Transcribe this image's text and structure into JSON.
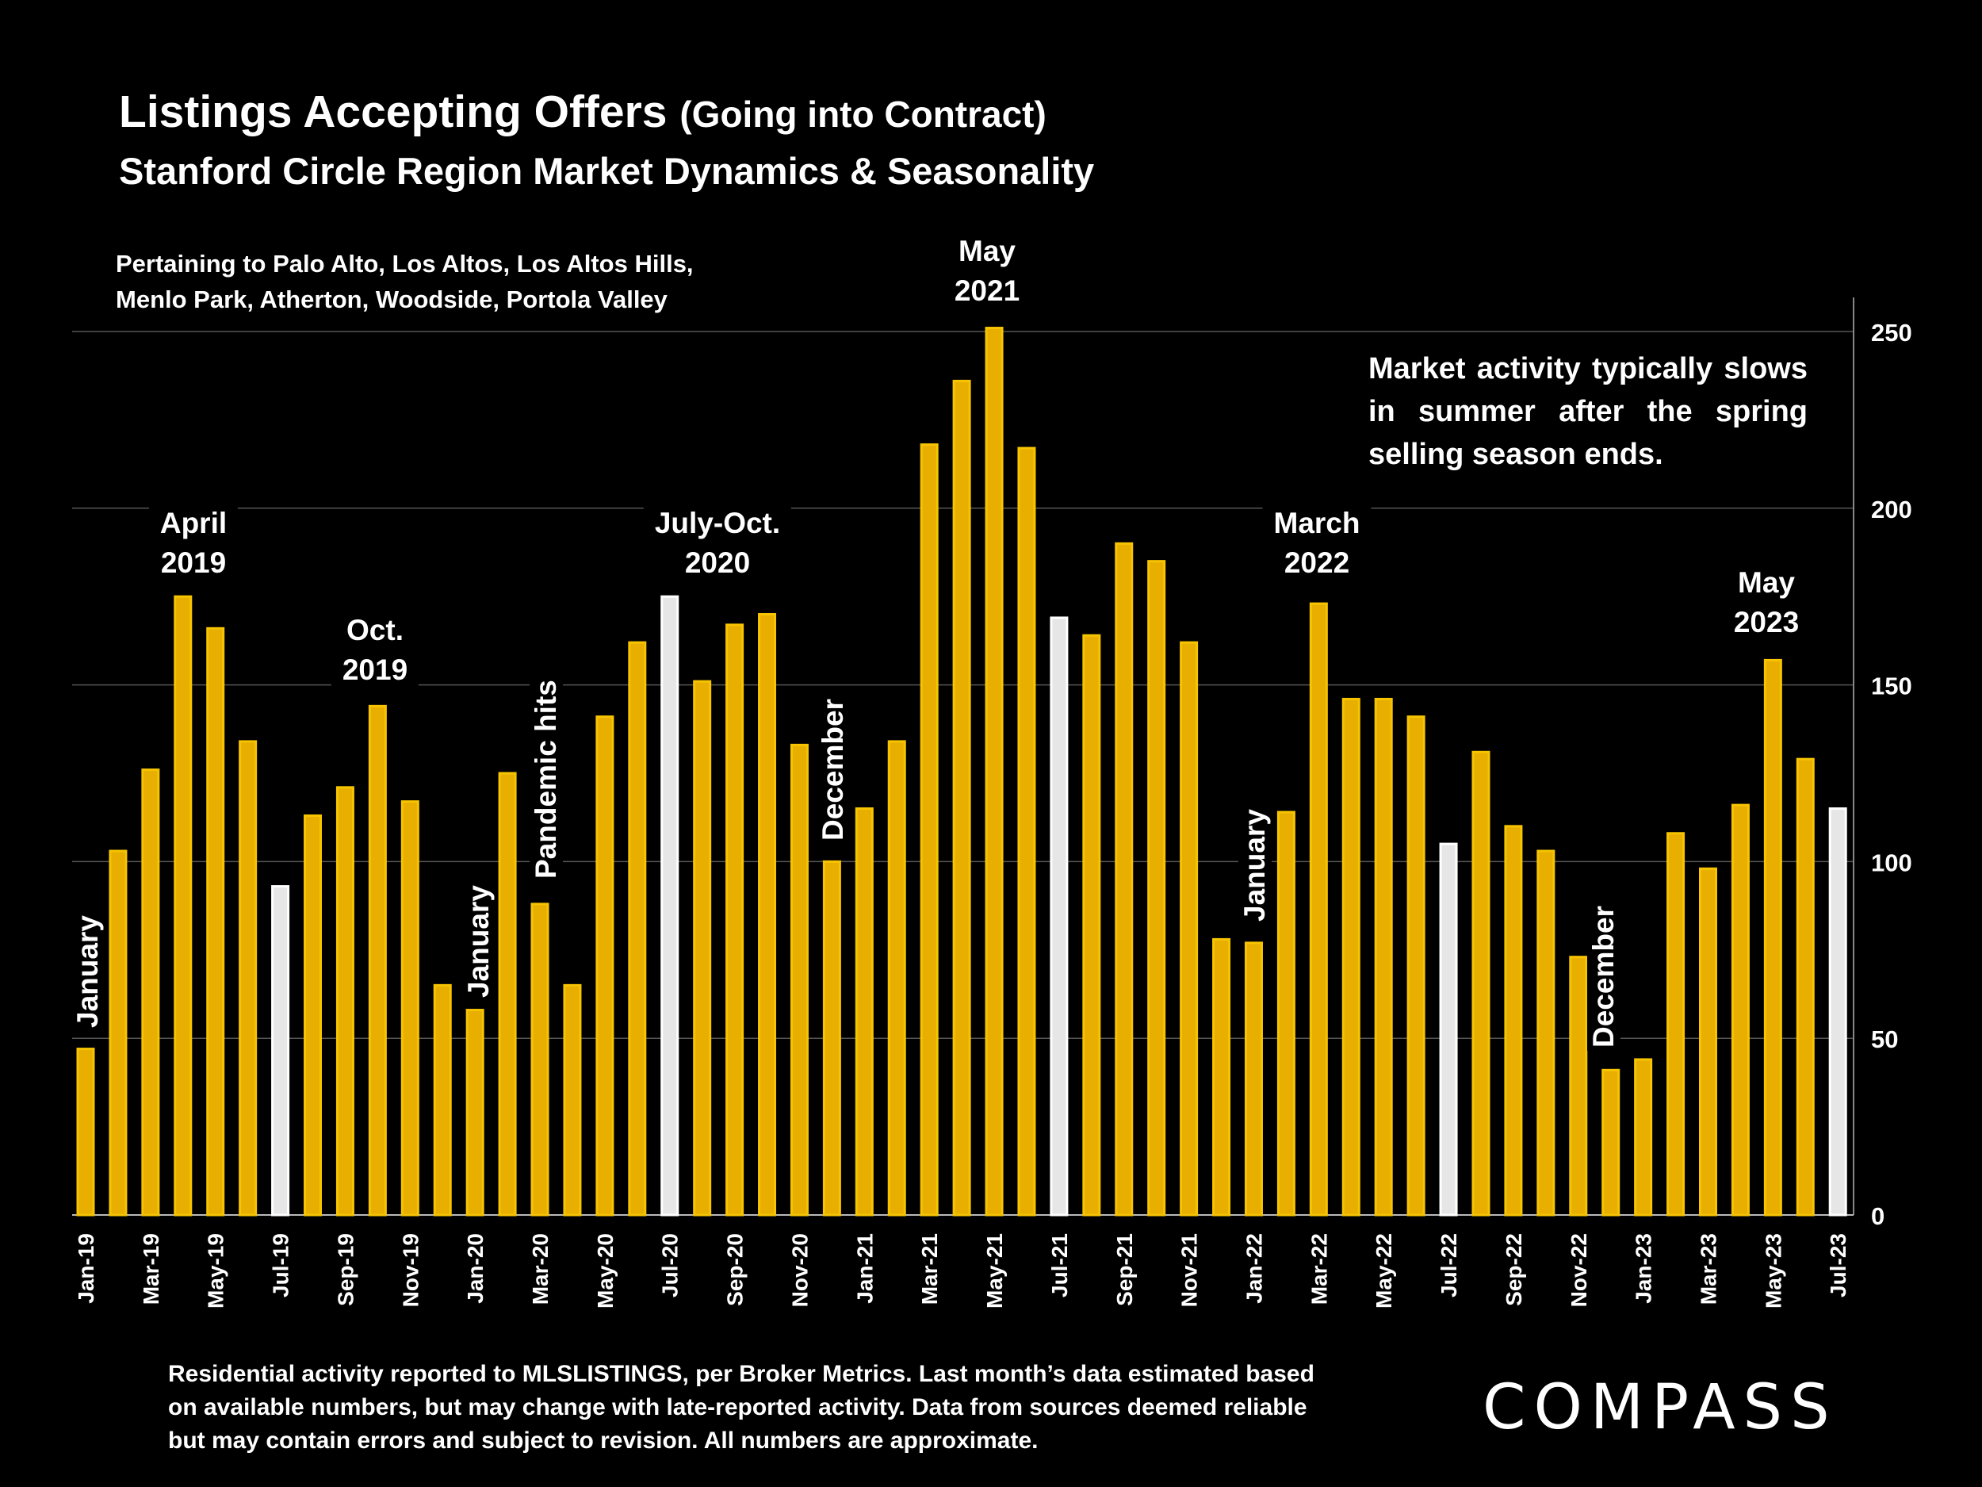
{
  "title": {
    "main": "Listings Accepting Offers",
    "paren": "(Going into Contract)"
  },
  "subtitle": "Stanford Circle Region Market Dynamics & Seasonality",
  "caption": [
    "Pertaining to Palo Alto, Los Altos, Los Altos Hills,",
    "Menlo Park, Atherton, Woodside, Portola Valley"
  ],
  "footer": [
    "Residential activity reported to MLSLISTINGS, per Broker Metrics. Last month’s data estimated based",
    "on available numbers, but may change with late-reported activity. Data from sources deemed reliable",
    "but may contain errors and subject to revision. All numbers are approximate."
  ],
  "logo": "COMPASS",
  "colors": {
    "bar": "#E8AE00",
    "bar_edge": "#F7C400",
    "highlight_bar": "#E6E6E6",
    "background": "#000000",
    "grid": "#555555"
  },
  "chart_data": {
    "type": "bar",
    "title": "Listings Accepting Offers (Going into Contract)",
    "ylim": [
      0,
      250
    ],
    "yticks": [
      0,
      50,
      100,
      150,
      200,
      250
    ],
    "y_axis_side": "right",
    "grid": true,
    "categories": [
      "Jan-19",
      "Feb-19",
      "Mar-19",
      "Apr-19",
      "May-19",
      "Jun-19",
      "Jul-19",
      "Aug-19",
      "Sep-19",
      "Oct-19",
      "Nov-19",
      "Dec-19",
      "Jan-20",
      "Feb-20",
      "Mar-20",
      "Apr-20",
      "May-20",
      "Jun-20",
      "Jul-20",
      "Aug-20",
      "Sep-20",
      "Oct-20",
      "Nov-20",
      "Dec-20",
      "Jan-21",
      "Feb-21",
      "Mar-21",
      "Apr-21",
      "May-21",
      "Jun-21",
      "Jul-21",
      "Aug-21",
      "Sep-21",
      "Oct-21",
      "Nov-21",
      "Dec-21",
      "Jan-22",
      "Feb-22",
      "Mar-22",
      "Apr-22",
      "May-22",
      "Jun-22",
      "Jul-22",
      "Aug-22",
      "Sep-22",
      "Oct-22",
      "Nov-22",
      "Dec-22",
      "Jan-23",
      "Feb-23",
      "Mar-23",
      "Apr-23",
      "May-23",
      "Jun-23",
      "Jul-23"
    ],
    "values": [
      47,
      103,
      126,
      175,
      166,
      134,
      93,
      113,
      121,
      144,
      117,
      65,
      58,
      125,
      88,
      65,
      141,
      162,
      175,
      151,
      167,
      170,
      133,
      100,
      115,
      134,
      218,
      236,
      251,
      217,
      169,
      164,
      190,
      185,
      162,
      78,
      77,
      114,
      173,
      146,
      146,
      141,
      105,
      131,
      110,
      103,
      73,
      41,
      44,
      108,
      98,
      116,
      157,
      129,
      115
    ],
    "highlighted": [
      "Jul-19",
      "Jul-20",
      "Jul-21",
      "Jul-22",
      "Jul-23"
    ],
    "annotations": [
      {
        "text": "January",
        "vertical": true
      },
      {
        "text": "April\n2019"
      },
      {
        "text": "Oct.\n2019"
      },
      {
        "text": "January",
        "vertical": true
      },
      {
        "text": "Pandemic hits",
        "vertical": true
      },
      {
        "text": "July-Oct.\n2020"
      },
      {
        "text": "December",
        "vertical": true
      },
      {
        "text": "May\n2021"
      },
      {
        "text": "March\n2022"
      },
      {
        "text": "January",
        "vertical": true
      },
      {
        "text": "December",
        "vertical": true
      },
      {
        "text": "May\n2023"
      }
    ],
    "note": "Market activity typically slows in summer after the spring selling season ends."
  }
}
